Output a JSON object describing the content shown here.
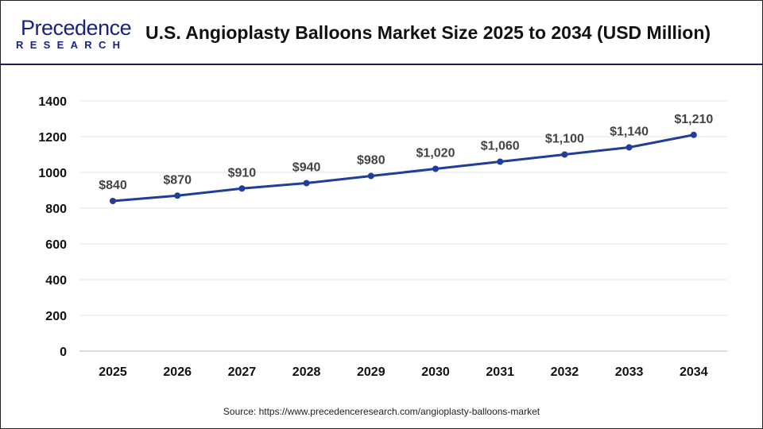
{
  "header": {
    "logo_text": "Precedence",
    "logo_subtext": "RESEARCH",
    "title": "U.S. Angioplasty Balloons Market Size 2025 to 2034 (USD Million)"
  },
  "source": "Source: https://www.precedenceresearch.com/angioplasty-balloons-market",
  "colors": {
    "line": "#1f3d99",
    "grid": "#e6e6e6",
    "brand": "#1a237e"
  },
  "chart_data": {
    "type": "line",
    "title": "U.S. Angioplasty Balloons Market Size 2025 to 2034 (USD Million)",
    "xlabel": "",
    "ylabel": "",
    "categories": [
      "2025",
      "2026",
      "2027",
      "2028",
      "2029",
      "2030",
      "2031",
      "2032",
      "2033",
      "2034"
    ],
    "values": [
      840,
      870,
      910,
      940,
      980,
      1020,
      1060,
      1100,
      1140,
      1210
    ],
    "data_labels": [
      "$840",
      "$870",
      "$910",
      "$940",
      "$980",
      "$1,020",
      "$1,060",
      "$1,100",
      "$1,140",
      "$1,210"
    ],
    "ylim": [
      0,
      1400
    ],
    "yticks": [
      0,
      200,
      400,
      600,
      800,
      1000,
      1200,
      1400
    ],
    "grid": true,
    "legend": "none"
  }
}
